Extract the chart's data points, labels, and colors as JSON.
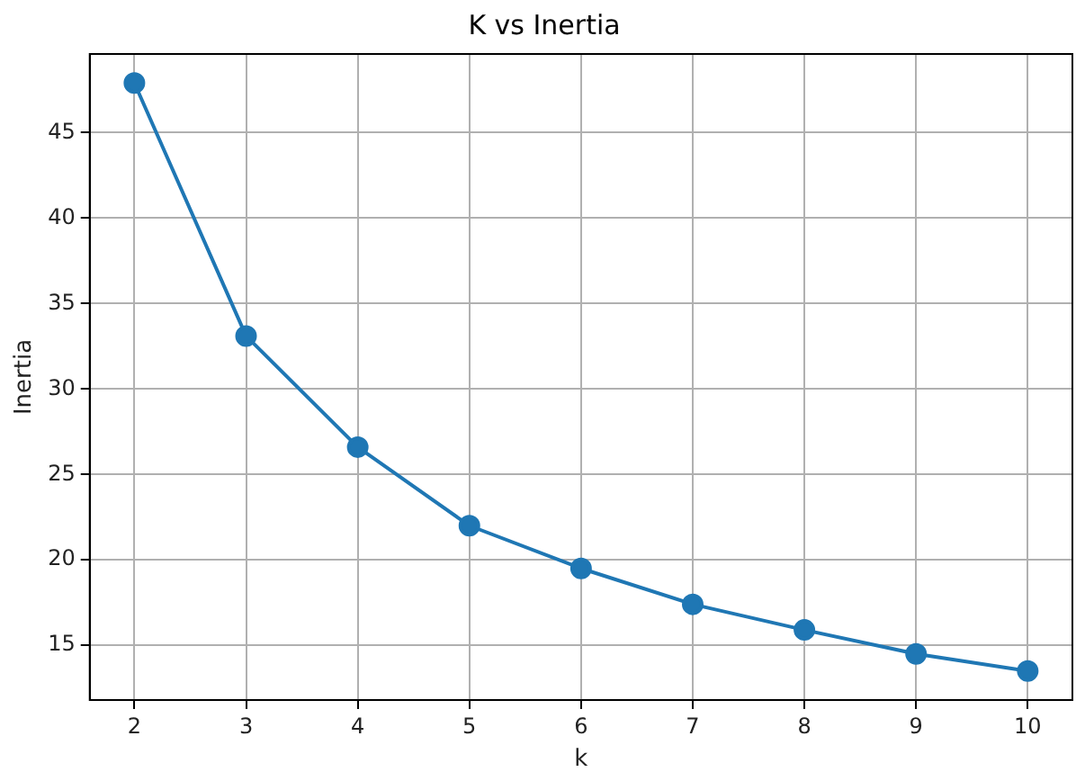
{
  "chart_data": {
    "type": "line",
    "title": "K vs Inertia",
    "xlabel": "k",
    "ylabel": "Inertia",
    "x": [
      2,
      3,
      4,
      5,
      6,
      7,
      8,
      9,
      10
    ],
    "series": [
      {
        "color": "#1f77b4",
        "values": [
          47.9,
          33.1,
          26.6,
          22.0,
          19.5,
          17.4,
          15.9,
          14.5,
          13.5
        ]
      }
    ],
    "xlim": [
      1.6,
      10.4
    ],
    "xticks": [
      2,
      3,
      4,
      5,
      6,
      7,
      8,
      9,
      10
    ],
    "ylim": [
      11.8,
      49.6
    ],
    "yticks": [
      15,
      20,
      25,
      30,
      35,
      40,
      45
    ],
    "grid": true,
    "marker": "circle",
    "line_style": "solid",
    "legend": false
  }
}
